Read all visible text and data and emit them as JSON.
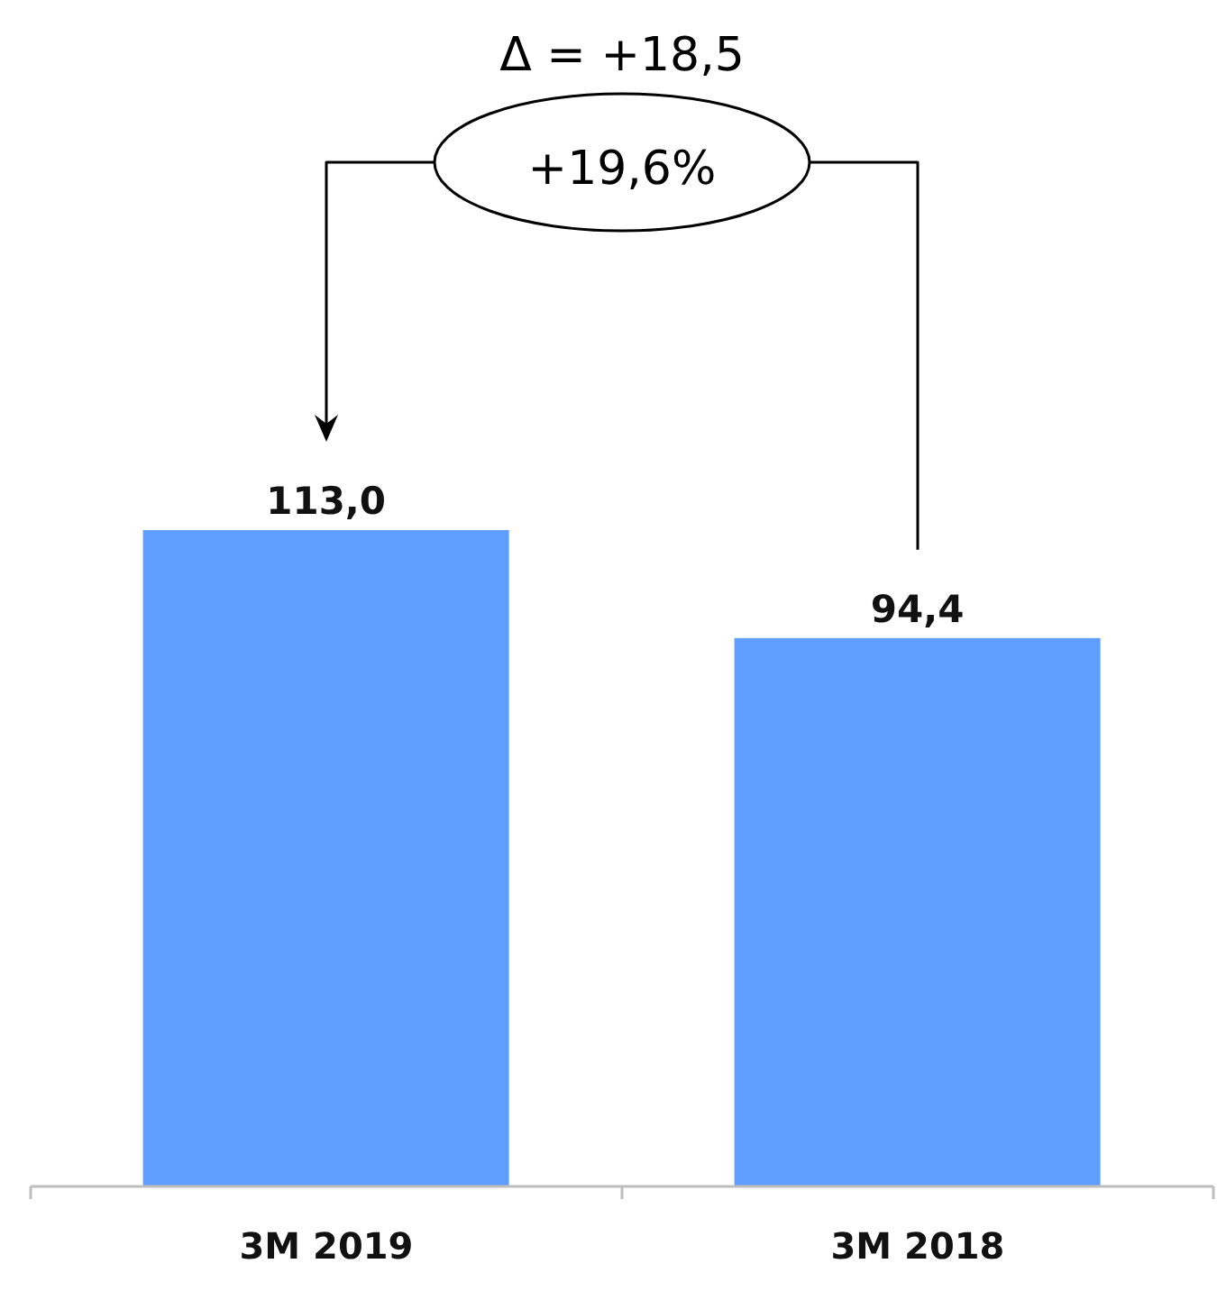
{
  "chart_data": {
    "type": "bar",
    "categories": [
      "3M 2019",
      "3M 2018"
    ],
    "values": [
      113.0,
      94.4
    ],
    "color": "#5f9dff",
    "value_labels": [
      "113,0",
      "94,4"
    ],
    "annotations": [
      "Δ = +18,5",
      "+19,6%"
    ],
    "tick_labels": "x"
  }
}
